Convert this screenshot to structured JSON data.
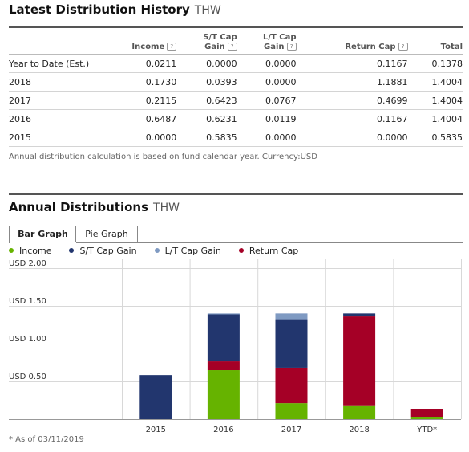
{
  "history": {
    "title": "Latest Distribution History",
    "ticker": "THW",
    "columns": [
      {
        "line1": "",
        "line2": "",
        "help": false
      },
      {
        "line1": "",
        "line2": "Income",
        "help": true
      },
      {
        "line1": "S/T Cap",
        "line2": "Gain",
        "help": true
      },
      {
        "line1": "L/T Cap",
        "line2": "Gain",
        "help": true
      },
      {
        "line1": "",
        "line2": "Return Cap",
        "help": true
      },
      {
        "line1": "",
        "line2": "Total",
        "help": false
      }
    ],
    "rows": [
      [
        "Year to Date (Est.)",
        "0.0211",
        "0.0000",
        "0.0000",
        "0.1167",
        "0.1378"
      ],
      [
        "2018",
        "0.1730",
        "0.0393",
        "0.0000",
        "1.1881",
        "1.4004"
      ],
      [
        "2017",
        "0.2115",
        "0.6423",
        "0.0767",
        "0.4699",
        "1.4004"
      ],
      [
        "2016",
        "0.6487",
        "0.6231",
        "0.0119",
        "0.1167",
        "1.4004"
      ],
      [
        "2015",
        "0.0000",
        "0.5835",
        "0.0000",
        "0.0000",
        "0.5835"
      ]
    ],
    "note": "Annual distribution calculation is based on fund calendar year. Currency:USD",
    "help_glyph": "?"
  },
  "annual": {
    "title": "Annual Distributions",
    "ticker": "THW",
    "tabs": [
      "Bar Graph",
      "Pie Graph"
    ],
    "active_tab": 0,
    "as_of": "* As of 03/11/2019"
  },
  "chart_data": {
    "type": "bar",
    "stacked": true,
    "categories": [
      "2015",
      "2016",
      "2017",
      "2018",
      "YTD*"
    ],
    "series": [
      {
        "name": "Income",
        "color": "#66b300",
        "values": [
          0.0,
          0.6487,
          0.2115,
          0.173,
          0.0211
        ]
      },
      {
        "name": "Return Cap",
        "color": "#a50026",
        "values": [
          0.0,
          0.1167,
          0.4699,
          1.1881,
          0.1167
        ]
      },
      {
        "name": "S/T Cap Gain",
        "color": "#22366e",
        "values": [
          0.5835,
          0.6231,
          0.6423,
          0.0393,
          0.0
        ]
      },
      {
        "name": "L/T Cap Gain",
        "color": "#7f9ac2",
        "values": [
          0.0,
          0.0119,
          0.0767,
          0.0,
          0.0
        ]
      }
    ],
    "legend_order": [
      "Income",
      "S/T Cap Gain",
      "L/T Cap Gain",
      "Return Cap"
    ],
    "y_ticks": [
      {
        "value": 0.5,
        "label": "USD 0.50"
      },
      {
        "value": 1.0,
        "label": "USD 1.00"
      },
      {
        "value": 1.5,
        "label": "USD 1.50"
      },
      {
        "value": 2.0,
        "label": "USD 2.00"
      }
    ],
    "ylim": [
      0,
      2.0
    ],
    "grid": true,
    "legend_position": "top-left"
  }
}
